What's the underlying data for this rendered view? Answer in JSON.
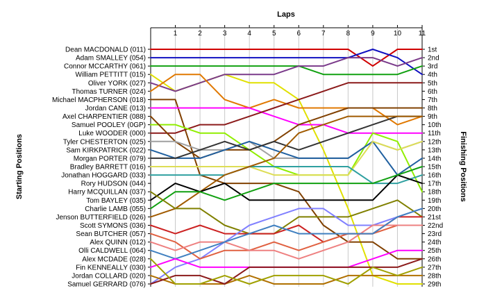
{
  "chart_data": {
    "type": "line",
    "title": "",
    "x_title": "Laps",
    "y_left_title": "Starting Positions",
    "y_right_title": "Finishing Positions",
    "x": [
      0,
      1,
      2,
      3,
      4,
      5,
      6,
      7,
      8,
      9,
      10,
      11
    ],
    "x_ticks": [
      "1",
      "2",
      "3",
      "4",
      "5",
      "6",
      "7",
      "8",
      "9",
      "10",
      "11"
    ],
    "ylim": [
      1,
      29
    ],
    "grid": "vertical",
    "drivers": [
      "Dean MACDONALD (011)",
      "Adam SMALLEY (054)",
      "Connor MCCARTHY (061)",
      "William PETTITT (015)",
      "Oliver YORK (027)",
      "Thomas TURNER (024)",
      "Michael MACPHERSON (018)",
      "Jordan CANE (013)",
      "Axel CHARPENTIER (088)",
      "Samuel POOLEY (0GP)",
      "Luke WOODER (000)",
      "Tyler CHESTERTON (025)",
      "Sam KIRKPATRICK (022)",
      "Morgan PORTER (079)",
      "Bradley BARRETT (016)",
      "Jonathan HOGGARD (033)",
      "Rory HUDSON (044)",
      "Harry MCQUILLAN (037)",
      "Tom BAYLEY (035)",
      "Charlie LAMB (055)",
      "Jenson BUTTERFIELD (026)",
      "Scott SYMONS (036)",
      "Sean BUTCHER (057)",
      "Alex QUINN (012)",
      "Olli CALDWELL (064)",
      "Alex MCDADE (028)",
      "Fin KENNEALLY (030)",
      "Jordan COLLARD (020)",
      "Samuel GERRARD (076)"
    ],
    "finishing_labels": [
      "1st",
      "2nd",
      "3rd",
      "4th",
      "5th",
      "6th",
      "7th",
      "8th",
      "9th",
      "10th",
      "11th",
      "12th",
      "13th",
      "14th",
      "15th",
      "16th",
      "17th",
      "18th",
      "19th",
      "20th",
      "21st",
      "22nd",
      "23rd",
      "24th",
      "25th",
      "26th",
      "27th",
      "28th",
      "29th"
    ],
    "series": [
      {
        "color": "#d00000",
        "values": [
          1,
          1,
          1,
          1,
          1,
          1,
          1,
          1,
          1,
          3,
          1,
          1
        ]
      },
      {
        "color": "#1010c0",
        "values": [
          2,
          2,
          2,
          2,
          2,
          2,
          2,
          2,
          2,
          1,
          2,
          4
        ]
      },
      {
        "color": "#10a010",
        "values": [
          3,
          3,
          3,
          3,
          3,
          3,
          3,
          4,
          4,
          4,
          4,
          3
        ]
      },
      {
        "color": "#e0e000",
        "values": [
          4,
          6,
          5,
          4,
          5,
          5,
          7,
          13,
          20,
          28,
          29,
          29
        ]
      },
      {
        "color": "#7a3a8a",
        "values": [
          5,
          6,
          5,
          4,
          4,
          4,
          3,
          3,
          2,
          2,
          3,
          2
        ]
      },
      {
        "color": "#e07800",
        "values": [
          6,
          4,
          4,
          7,
          8,
          7,
          8,
          8,
          8,
          8,
          10,
          9
        ]
      },
      {
        "color": "#804000",
        "values": [
          7,
          7,
          16,
          17,
          17,
          17,
          18,
          22,
          24,
          24,
          26,
          26
        ]
      },
      {
        "color": "#ff00ff",
        "values": [
          8,
          8,
          8,
          8,
          8,
          9,
          10,
          10,
          11,
          11,
          11,
          11
        ]
      },
      {
        "color": "#8b1a1a",
        "values": [
          11,
          11,
          10,
          10,
          9,
          8,
          7,
          6,
          5,
          5,
          5,
          5
        ]
      },
      {
        "color": "#90ee00",
        "values": [
          10,
          10,
          11,
          11,
          13,
          15,
          16,
          16,
          16,
          11,
          12,
          18
        ]
      },
      {
        "color": "#804000",
        "values": [
          9,
          12,
          14,
          13,
          13,
          12,
          10,
          9,
          8,
          8,
          8,
          8
        ]
      },
      {
        "color": "#a0a0a0",
        "values": [
          12,
          12,
          13,
          13,
          12,
          14,
          14,
          14,
          14,
          12,
          13,
          12
        ]
      },
      {
        "color": "#2060a0",
        "values": [
          13,
          14,
          14,
          13,
          12,
          13,
          14,
          14,
          14,
          12,
          16,
          14
        ]
      },
      {
        "color": "#333333",
        "values": [
          14,
          14,
          13,
          12,
          13,
          12,
          13,
          12,
          11,
          10,
          9,
          9
        ]
      },
      {
        "color": "#dddd55",
        "values": [
          15,
          15,
          15,
          15,
          15,
          16,
          16,
          16,
          16,
          12,
          13,
          12
        ]
      },
      {
        "color": "#2fa0a0",
        "values": [
          16,
          16,
          16,
          16,
          15,
          15,
          15,
          15,
          15,
          17,
          17,
          16
        ]
      },
      {
        "color": "#a05a00",
        "values": [
          21,
          20,
          18,
          16,
          15,
          14,
          11,
          10,
          9,
          9,
          9,
          9
        ]
      },
      {
        "color": "#000000",
        "values": [
          19,
          17,
          18,
          17,
          19,
          19,
          19,
          19,
          19,
          19,
          16,
          17
        ]
      },
      {
        "color": "#10a010",
        "values": [
          20,
          18,
          18,
          19,
          18,
          17,
          17,
          17,
          17,
          17,
          16,
          15
        ]
      },
      {
        "color": "#808000",
        "values": [
          18,
          20,
          20,
          22,
          23,
          23,
          21,
          21,
          21,
          20,
          19,
          21
        ]
      },
      {
        "color": "#cc2222",
        "values": [
          22,
          23,
          22,
          23,
          23,
          23,
          22,
          24,
          23,
          23,
          21,
          21
        ]
      },
      {
        "color": "#8080ff",
        "values": [
          29,
          27,
          26,
          24,
          22,
          21,
          20,
          20,
          22,
          22,
          21,
          20
        ]
      },
      {
        "color": "#e06040",
        "values": [
          23,
          24,
          26,
          25,
          25,
          24,
          25,
          24,
          23,
          23,
          22,
          22
        ]
      },
      {
        "color": "#ee8080",
        "values": [
          24,
          25,
          24,
          24,
          25,
          25,
          26,
          25,
          24,
          22,
          22,
          22
        ]
      },
      {
        "color": "#4080c0",
        "values": [
          25,
          26,
          25,
          24,
          23,
          22,
          23,
          23,
          23,
          23,
          21,
          20
        ]
      },
      {
        "color": "#ff00ff",
        "values": [
          27,
          26,
          27,
          27,
          27,
          27,
          27,
          27,
          27,
          26,
          25,
          25
        ]
      },
      {
        "color": "#b07000",
        "values": [
          28,
          29,
          29,
          29,
          28,
          29,
          29,
          29,
          28,
          28,
          28,
          28
        ]
      },
      {
        "color": "#8b1a1a",
        "values": [
          29,
          28,
          28,
          29,
          27,
          27,
          27,
          27,
          27,
          27,
          27,
          26
        ]
      },
      {
        "color": "#a0a000",
        "values": [
          26,
          29,
          29,
          28,
          29,
          28,
          28,
          28,
          29,
          27,
          28,
          27
        ]
      }
    ]
  }
}
